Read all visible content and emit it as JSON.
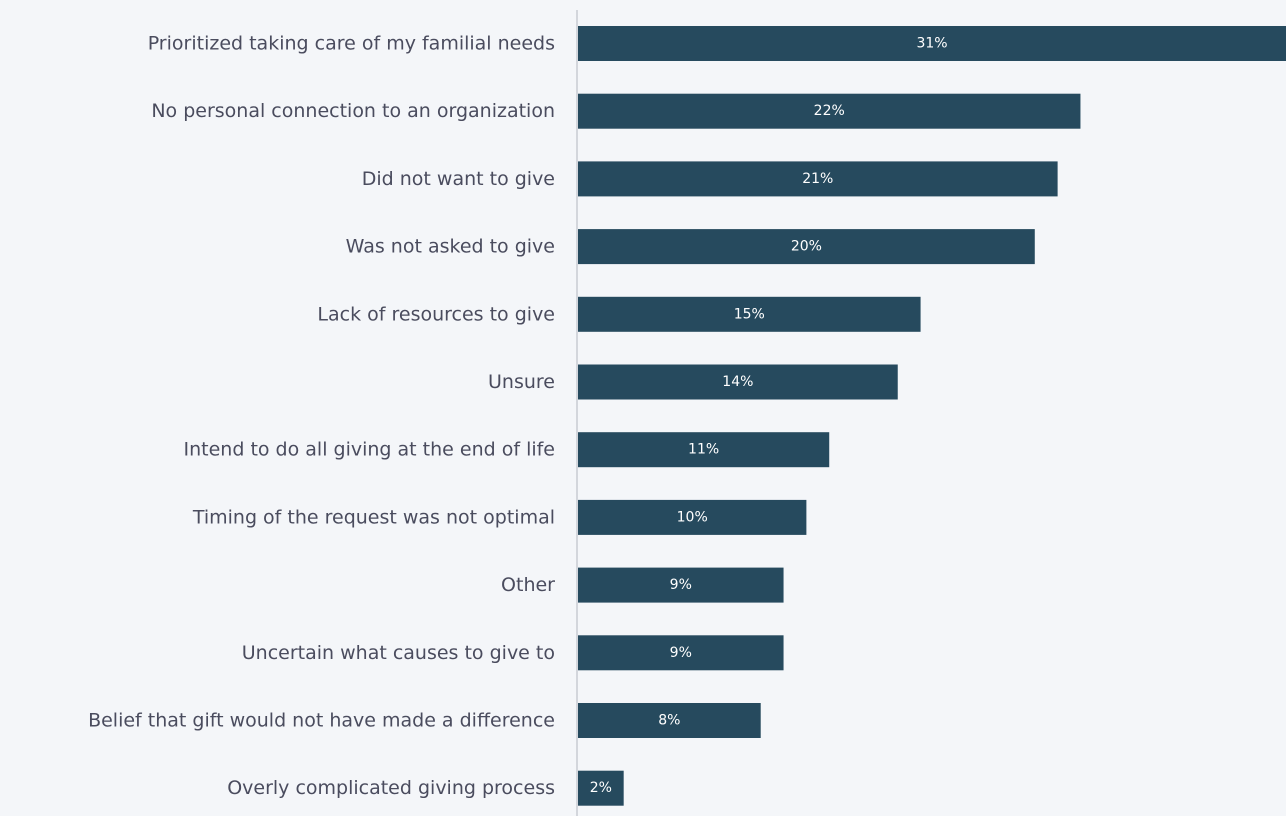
{
  "chart_data": {
    "type": "bar",
    "orientation": "horizontal",
    "title": "",
    "xlabel": "",
    "ylabel": "",
    "categories": [
      "Prioritized taking care of my familial needs",
      "No personal connection to an organization",
      "Did not want to give",
      "Was not asked to give",
      "Lack of resources to give",
      "Unsure",
      "Intend to do all giving at the end of life",
      "Timing of the request was not optimal",
      "Other",
      "Uncertain what causes to give to",
      "Belief that gift would not have made a difference",
      "Overly complicated giving process"
    ],
    "values": [
      31,
      22,
      21,
      20,
      15,
      14,
      11,
      10,
      9,
      9,
      8,
      2
    ],
    "value_labels": [
      "31%",
      "22%",
      "21%",
      "20%",
      "15%",
      "14%",
      "11%",
      "10%",
      "9%",
      "9%",
      "8%",
      "2%"
    ],
    "unit": "%",
    "xlim": [
      0,
      31
    ],
    "grid": false,
    "legend": "none",
    "colors": {
      "bar": "#264a5e",
      "axis": "#c8ccd2",
      "label_text": "#4a4c5e",
      "value_text": "#ffffff",
      "background": "#f4f6f9"
    }
  }
}
